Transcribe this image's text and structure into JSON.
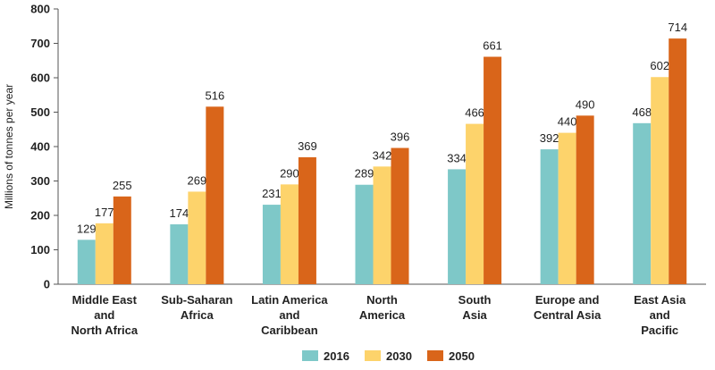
{
  "chart_data": {
    "type": "bar",
    "ylabel": "Millions of tonnes per year",
    "ylim": [
      0,
      800
    ],
    "yticks": [
      0,
      100,
      200,
      300,
      400,
      500,
      600,
      700,
      800
    ],
    "grid": false,
    "legend_position": "bottom",
    "categories": [
      [
        "Middle East",
        "and",
        "North Africa"
      ],
      [
        "Sub-Saharan",
        "Africa"
      ],
      [
        "Latin America",
        "and",
        "Caribbean"
      ],
      [
        "North",
        "America"
      ],
      [
        "South",
        "Asia"
      ],
      [
        "Europe and",
        "Central Asia"
      ],
      [
        "East Asia",
        "and",
        "Pacific"
      ]
    ],
    "series": [
      {
        "name": "2016",
        "color": "#7ec8c8",
        "values": [
          129,
          174,
          231,
          289,
          334,
          392,
          468
        ]
      },
      {
        "name": "2030",
        "color": "#fdd36b",
        "values": [
          177,
          269,
          290,
          342,
          466,
          440,
          602
        ]
      },
      {
        "name": "2050",
        "color": "#d9651a",
        "values": [
          255,
          516,
          369,
          396,
          661,
          490,
          714
        ]
      }
    ]
  }
}
